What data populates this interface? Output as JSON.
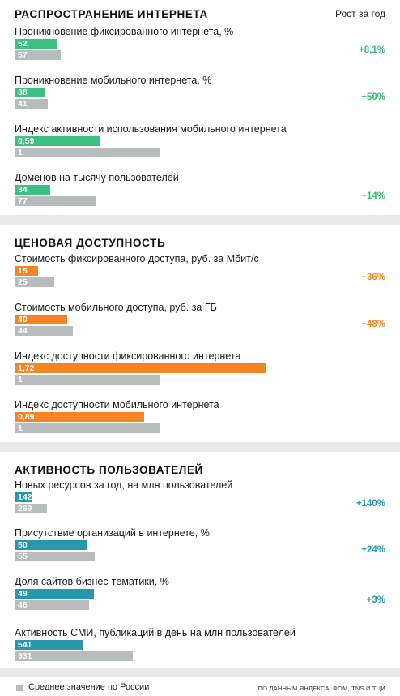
{
  "colors": {
    "internet": "#3cc183",
    "price": "#f58523",
    "activity": "#2697ad",
    "average": "#b8bcbd",
    "positive": "#3cb878",
    "negative": "#f58523",
    "positive_blue": "#2697ad"
  },
  "growth_header": "Рост за год",
  "legend": {
    "label": "Среднее значение по России"
  },
  "source": "ПО ДАННЫМ ЯНДЕКСА, ФОМ, TNS И ТЦИ",
  "chart_data": [
    {
      "type": "bar",
      "title": "РАСПРОСТРАНЕНИЕ ИНТЕРНЕТА",
      "color_key": "internet",
      "metrics": [
        {
          "label": "Проникновение фиксированного интернета, %",
          "value": "52",
          "average": "57",
          "value_num": 52,
          "average_num": 57,
          "max": 180,
          "growth": "+8,1%"
        },
        {
          "label": "Проникновение мобильного интернета, %",
          "value": "38",
          "average": "41",
          "value_num": 38,
          "average_num": 41,
          "max": 180,
          "growth": "+50%"
        },
        {
          "label": "Индекс активности использования мобильного интернета",
          "value": "0,59",
          "average": "1",
          "value_num": 0.59,
          "average_num": 1,
          "max": 1.0,
          "growth": ""
        },
        {
          "label": "Доменов на тысячу пользователей",
          "value": "34",
          "average": "77",
          "value_num": 34,
          "average_num": 77,
          "max": 138,
          "growth": "+14%"
        }
      ]
    },
    {
      "type": "bar",
      "title": "ЦЕНОВАЯ ДОСТУПНОСТЬ",
      "color_key": "price",
      "metrics": [
        {
          "label": "Стоимость фиксированного доступа, руб. за Мбит/с",
          "value": "15",
          "average": "25",
          "value_num": 15,
          "average_num": 25,
          "max": 92,
          "growth": "−36%"
        },
        {
          "label": "Стоимость мобильного доступа, руб. за ГБ",
          "value": "40",
          "average": "44",
          "value_num": 40,
          "average_num": 44,
          "max": 110,
          "growth": "−48%"
        },
        {
          "label": "Индекс доступности фиксированного интернета",
          "value": "1,72",
          "average": "1",
          "value_num": 1.72,
          "average_num": 1,
          "max": 1.0,
          "growth": ""
        },
        {
          "label": "Индекс доступности мобильного интернета",
          "value": "0,89",
          "average": "1",
          "value_num": 0.89,
          "average_num": 1,
          "max": 1.0,
          "growth": ""
        }
      ]
    },
    {
      "type": "bar",
      "title": "АКТИВНОСТЬ ПОЛЬЗОВАТЕЛЕЙ",
      "color_key": "activity",
      "metrics": [
        {
          "label": "Новых ресурсов за год, на млн пользователей",
          "value": "142",
          "average": "269",
          "value_num": 142,
          "average_num": 269,
          "max": 1200,
          "growth": "+140%"
        },
        {
          "label": "Присутствие организаций в интернете, %",
          "value": "50",
          "average": "55",
          "value_num": 50,
          "average_num": 55,
          "max": 100,
          "growth": "+24%"
        },
        {
          "label": "Доля сайтов бизнес-тематики, %",
          "value": "49",
          "average": "46",
          "value_num": 49,
          "average_num": 46,
          "max": 90,
          "growth": "+3%"
        },
        {
          "label": "Активность СМИ, публикаций в день на млн пользователей",
          "value": "541",
          "average": "931",
          "value_num": 541,
          "average_num": 931,
          "max": 1150,
          "growth": ""
        }
      ]
    }
  ]
}
